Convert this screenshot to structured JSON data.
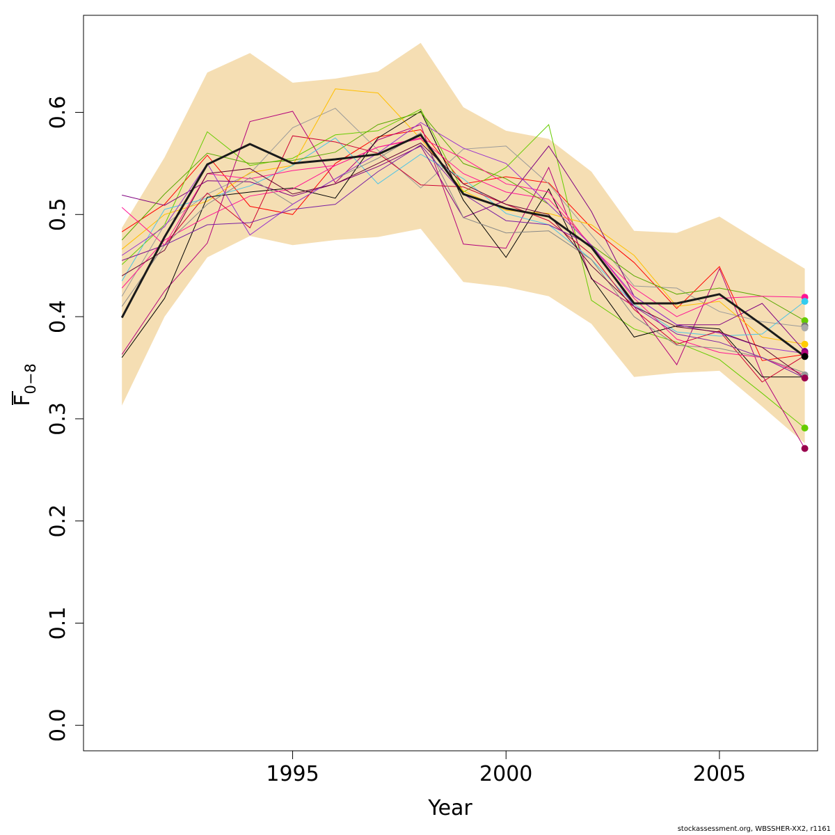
{
  "chart_data": {
    "type": "line",
    "title": "",
    "xlabel": "Year",
    "ylabel": "F",
    "ylabel_subscript": "0−8",
    "xlim": [
      1990.1,
      2007.3
    ],
    "ylim": [
      -0.025,
      0.695
    ],
    "x_ticks": [
      1995,
      2000,
      2005
    ],
    "x_tick_labels": [
      "1995",
      "2000",
      "2005"
    ],
    "y_ticks": [
      0.0,
      0.1,
      0.2,
      0.3,
      0.4,
      0.5,
      0.6
    ],
    "y_tick_labels": [
      "0.0",
      "0.1",
      "0.2",
      "0.3",
      "0.4",
      "0.5",
      "0.6"
    ],
    "grid": false,
    "legend": "none",
    "years": [
      1991,
      1992,
      1993,
      1994,
      1995,
      1996,
      1997,
      1998,
      1999,
      2000,
      2001,
      2002,
      2003,
      2004,
      2005,
      2006,
      2007
    ],
    "band": {
      "fill": "#f5deb3",
      "upper": [
        0.487,
        0.556,
        0.639,
        0.658,
        0.629,
        0.633,
        0.64,
        0.668,
        0.605,
        0.582,
        0.574,
        0.542,
        0.484,
        0.482,
        0.498,
        0.472,
        0.447
      ],
      "lower": [
        0.313,
        0.4,
        0.458,
        0.479,
        0.47,
        0.475,
        0.478,
        0.486,
        0.434,
        0.429,
        0.42,
        0.393,
        0.341,
        0.345,
        0.347,
        0.312,
        0.276
      ]
    },
    "main_series": {
      "color": "#1a1a1a",
      "values": [
        0.399,
        0.478,
        0.549,
        0.569,
        0.55,
        0.554,
        0.559,
        0.578,
        0.52,
        0.506,
        0.498,
        0.468,
        0.413,
        0.413,
        0.422,
        0.392,
        0.361
      ]
    },
    "series": [
      {
        "color": "#ff0000",
        "values": [
          0.483,
          0.51,
          0.558,
          0.508,
          0.5,
          0.55,
          0.576,
          0.583,
          0.53,
          0.537,
          0.531,
          0.487,
          0.453,
          0.408,
          0.449,
          0.357,
          0.363
        ]
      },
      {
        "color": "#66cc00",
        "values": [
          0.451,
          0.49,
          0.581,
          0.548,
          0.555,
          0.578,
          0.582,
          0.603,
          0.522,
          0.546,
          0.588,
          0.416,
          0.388,
          0.375,
          0.358,
          0.325,
          0.291
        ]
      },
      {
        "color": "#999999",
        "values": [
          0.42,
          0.49,
          0.52,
          0.54,
          0.585,
          0.604,
          0.563,
          0.526,
          0.564,
          0.567,
          0.53,
          0.48,
          0.43,
          0.428,
          0.405,
          0.395,
          0.39
        ]
      },
      {
        "color": "#b3007a",
        "values": [
          0.363,
          0.425,
          0.472,
          0.591,
          0.601,
          0.531,
          0.573,
          0.588,
          0.471,
          0.467,
          0.546,
          0.437,
          0.41,
          0.353,
          0.447,
          0.343,
          0.271
        ]
      },
      {
        "color": "#ffbf00",
        "values": [
          0.466,
          0.5,
          0.513,
          0.541,
          0.548,
          0.623,
          0.619,
          0.574,
          0.523,
          0.504,
          0.501,
          0.49,
          0.46,
          0.41,
          0.415,
          0.38,
          0.373
        ]
      },
      {
        "color": "#4dc3e6",
        "values": [
          0.435,
          0.505,
          0.516,
          0.528,
          0.548,
          0.575,
          0.53,
          0.559,
          0.535,
          0.501,
          0.49,
          0.456,
          0.412,
          0.385,
          0.381,
          0.383,
          0.415
        ]
      },
      {
        "color": "#800080",
        "values": [
          0.519,
          0.509,
          0.533,
          0.532,
          0.518,
          0.53,
          0.547,
          0.567,
          0.497,
          0.514,
          0.567,
          0.503,
          0.42,
          0.392,
          0.392,
          0.413,
          0.366
        ]
      },
      {
        "color": "#000000",
        "values": [
          0.36,
          0.418,
          0.517,
          0.522,
          0.526,
          0.516,
          0.575,
          0.601,
          0.514,
          0.458,
          0.525,
          0.438,
          0.38,
          0.391,
          0.388,
          0.341,
          0.341
        ]
      },
      {
        "color": "#ff1493",
        "values": [
          0.428,
          0.475,
          0.498,
          0.518,
          0.525,
          0.548,
          0.566,
          0.574,
          0.54,
          0.522,
          0.515,
          0.47,
          0.418,
          0.378,
          0.365,
          0.36,
          0.343
        ]
      },
      {
        "color": "#cc0033",
        "values": [
          0.455,
          0.47,
          0.521,
          0.487,
          0.577,
          0.571,
          0.56,
          0.529,
          0.527,
          0.51,
          0.494,
          0.461,
          0.407,
          0.373,
          0.386,
          0.336,
          0.362
        ]
      },
      {
        "color": "#5aa800",
        "values": [
          0.475,
          0.52,
          0.56,
          0.55,
          0.553,
          0.561,
          0.588,
          0.6,
          0.55,
          0.535,
          0.51,
          0.47,
          0.44,
          0.422,
          0.428,
          0.42,
          0.396
        ]
      },
      {
        "color": "#ff1493",
        "values": [
          0.507,
          0.47,
          0.54,
          0.535,
          0.543,
          0.548,
          0.566,
          0.575,
          0.555,
          0.53,
          0.522,
          0.468,
          0.428,
          0.4,
          0.418,
          0.42,
          0.419
        ]
      },
      {
        "color": "#888888",
        "values": [
          0.41,
          0.47,
          0.51,
          0.536,
          0.51,
          0.535,
          0.555,
          0.58,
          0.497,
          0.482,
          0.484,
          0.456,
          0.4,
          0.372,
          0.369,
          0.36,
          0.345
        ]
      },
      {
        "color": "#9932cc",
        "values": [
          0.46,
          0.488,
          0.55,
          0.48,
          0.51,
          0.535,
          0.56,
          0.59,
          0.565,
          0.55,
          0.51,
          0.47,
          0.42,
          0.392,
          0.384,
          0.37,
          0.364
        ]
      },
      {
        "color": "#660033",
        "values": [
          0.44,
          0.465,
          0.54,
          0.545,
          0.52,
          0.53,
          0.55,
          0.57,
          0.53,
          0.51,
          0.5,
          0.45,
          0.41,
          0.39,
          0.385,
          0.37,
          0.34
        ]
      },
      {
        "color": "#7a1fa2",
        "values": [
          0.455,
          0.47,
          0.49,
          0.492,
          0.505,
          0.51,
          0.542,
          0.568,
          0.52,
          0.494,
          0.49,
          0.47,
          0.41,
          0.383,
          0.375,
          0.36,
          0.34
        ]
      }
    ],
    "end_points": [
      {
        "value": 0.419,
        "color": "#ff1493"
      },
      {
        "value": 0.415,
        "color": "#33ccee"
      },
      {
        "value": 0.396,
        "color": "#66cc00"
      },
      {
        "value": 0.391,
        "color": "#777777"
      },
      {
        "value": 0.389,
        "color": "#aaaaaa"
      },
      {
        "value": 0.373,
        "color": "#ffcc00"
      },
      {
        "value": 0.366,
        "color": "#800080"
      },
      {
        "value": 0.364,
        "color": "#b3007a"
      },
      {
        "value": 0.361,
        "color": "#000000"
      },
      {
        "value": 0.343,
        "color": "#999999"
      },
      {
        "value": 0.34,
        "color": "#99004d"
      },
      {
        "value": 0.291,
        "color": "#66cc00"
      },
      {
        "value": 0.271,
        "color": "#99004d"
      }
    ]
  },
  "credit": "stockassessment.org, WBSSHER-XX2, r1161"
}
